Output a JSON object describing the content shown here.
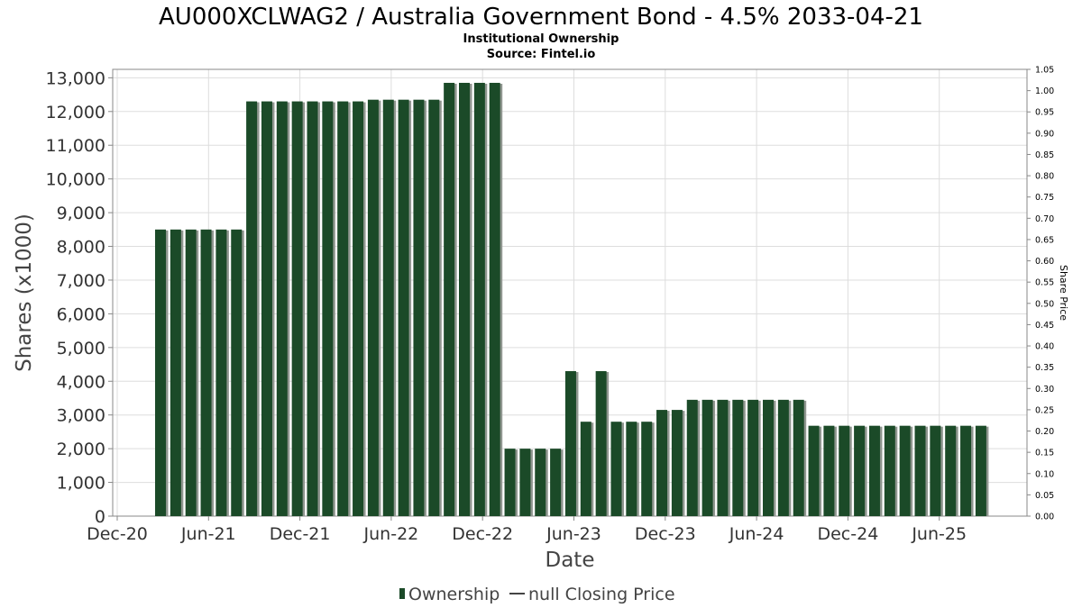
{
  "header": {
    "title": "AU000XCLWAG2 / Australia Government Bond - 4.5% 2033-04-21",
    "subtitle": "Institutional Ownership",
    "source": "Source: Fintel.io"
  },
  "legend": {
    "ownership_label": "Ownership",
    "price_label": "null Closing Price"
  },
  "colors": {
    "bar": "#1b4a28",
    "bar_shadow": "#8f968f",
    "grid": "#dddddd",
    "axis": "#888888"
  },
  "chart_data": {
    "type": "bar",
    "xlabel": "Date",
    "ylabel": "Shares (x1000)",
    "y2label": "Share Price",
    "ylim": [
      0,
      13250
    ],
    "y_ticks": [
      0,
      1000,
      2000,
      3000,
      4000,
      5000,
      6000,
      7000,
      8000,
      9000,
      10000,
      11000,
      12000,
      13000
    ],
    "y_tick_labels": [
      "0",
      "1,000",
      "2,000",
      "3,000",
      "4,000",
      "5,000",
      "6,000",
      "7,000",
      "8,000",
      "9,000",
      "10,000",
      "11,000",
      "12,000",
      "13,000"
    ],
    "y2lim": [
      0,
      1.05
    ],
    "y2_tick_labels": [
      "0.00",
      "0.05",
      "0.10",
      "0.15",
      "0.20",
      "0.25",
      "0.30",
      "0.35",
      "0.40",
      "0.45",
      "0.50",
      "0.55",
      "0.60",
      "0.65",
      "0.70",
      "0.75",
      "0.80",
      "0.85",
      "0.90",
      "0.95",
      "1.00",
      "1.05"
    ],
    "x_tick_labels": [
      "Dec-20",
      "Jun-21",
      "Dec-21",
      "Jun-22",
      "Dec-22",
      "Jun-23",
      "Dec-23",
      "Jun-24",
      "Dec-24",
      "Jun-25"
    ],
    "grid": true,
    "legend_position": "bottom",
    "series": [
      {
        "name": "Ownership",
        "values": [
          8500,
          8500,
          8500,
          8500,
          8500,
          8500,
          12300,
          12300,
          12300,
          12300,
          12300,
          12300,
          12300,
          12300,
          12350,
          12350,
          12350,
          12350,
          12350,
          12850,
          12850,
          12850,
          12850,
          2000,
          2000,
          2000,
          2000,
          4300,
          2800,
          4300,
          2800,
          2800,
          2800,
          3150,
          3150,
          3450,
          3450,
          3450,
          3450,
          3450,
          3450,
          3450,
          3450,
          2680,
          2680,
          2680,
          2680,
          2680,
          2680,
          2680,
          2680,
          2680,
          2680,
          2680,
          2680
        ]
      }
    ]
  }
}
